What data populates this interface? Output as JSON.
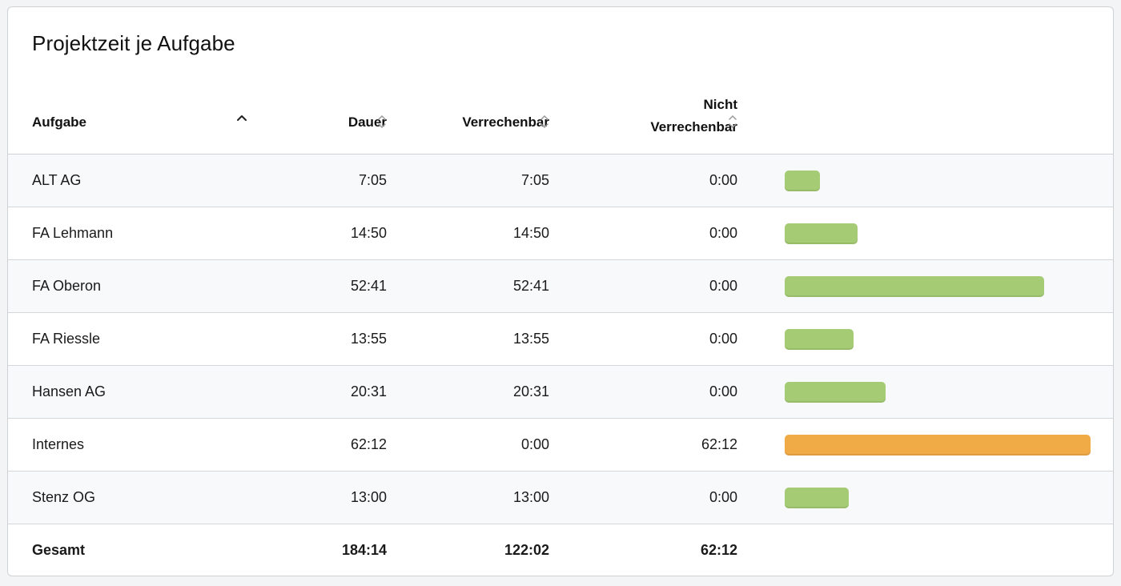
{
  "title": "Projektzeit je Aufgabe",
  "columns": {
    "task": "Aufgabe",
    "duration": "Dauer",
    "billable": "Verrechenbar",
    "nonbillable_line1": "Nicht",
    "nonbillable_line2": "Verrechenbar"
  },
  "rows": [
    {
      "task": "ALT AG",
      "duration": "7:05",
      "billable": "7:05",
      "nonbillable": "0:00",
      "bar_fraction": 0.114,
      "bar_color": "#a5cb74"
    },
    {
      "task": "FA Lehmann",
      "duration": "14:50",
      "billable": "14:50",
      "nonbillable": "0:00",
      "bar_fraction": 0.239,
      "bar_color": "#a5cb74"
    },
    {
      "task": "FA Oberon",
      "duration": "52:41",
      "billable": "52:41",
      "nonbillable": "0:00",
      "bar_fraction": 0.848,
      "bar_color": "#a5cb74"
    },
    {
      "task": "FA Riessle",
      "duration": "13:55",
      "billable": "13:55",
      "nonbillable": "0:00",
      "bar_fraction": 0.224,
      "bar_color": "#a5cb74"
    },
    {
      "task": "Hansen AG",
      "duration": "20:31",
      "billable": "20:31",
      "nonbillable": "0:00",
      "bar_fraction": 0.33,
      "bar_color": "#a5cb74"
    },
    {
      "task": "Internes",
      "duration": "62:12",
      "billable": "0:00",
      "nonbillable": "62:12",
      "bar_fraction": 1.0,
      "bar_color": "#f0aa46"
    },
    {
      "task": "Stenz OG",
      "duration": "13:00",
      "billable": "13:00",
      "nonbillable": "0:00",
      "bar_fraction": 0.209,
      "bar_color": "#a5cb74"
    }
  ],
  "total": {
    "label": "Gesamt",
    "duration": "184:14",
    "billable": "122:02",
    "nonbillable": "62:12"
  }
}
